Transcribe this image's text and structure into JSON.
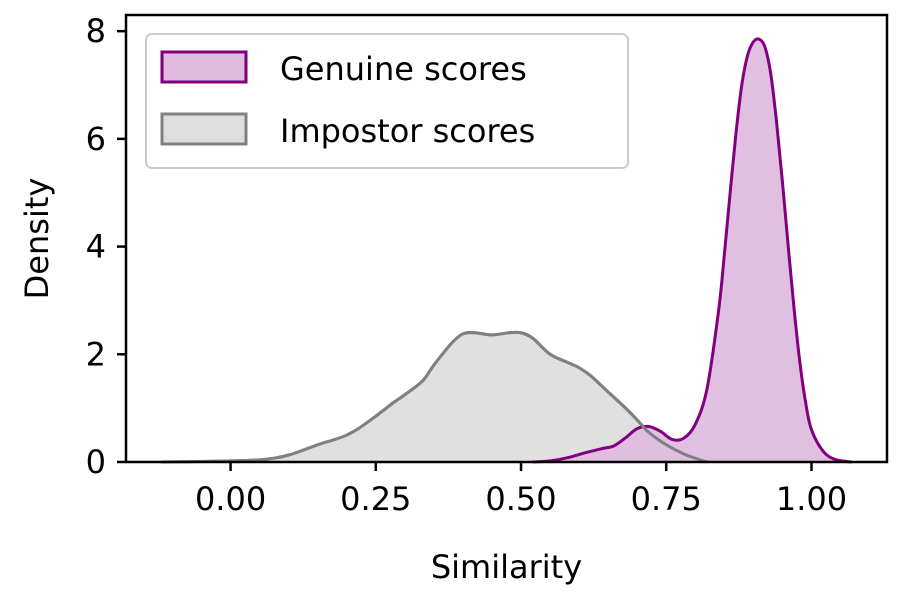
{
  "chart_data": {
    "type": "area",
    "title": "",
    "xlabel": "Similarity",
    "ylabel": "Density",
    "xlim": [
      -0.18,
      1.13
    ],
    "ylim": [
      0,
      8.3
    ],
    "xticks": [
      0.0,
      0.25,
      0.5,
      0.75,
      1.0
    ],
    "xtick_labels": [
      "0.00",
      "0.25",
      "0.50",
      "0.75",
      "1.00"
    ],
    "yticks": [
      0,
      2,
      4,
      6,
      8
    ],
    "ytick_labels": [
      "0",
      "2",
      "4",
      "6",
      "8"
    ],
    "grid": false,
    "legend_position": "top-left",
    "series": [
      {
        "name": "Genuine scores",
        "line_color": "#800080",
        "fill_color": "#dfbcdf",
        "x": [
          0.52,
          0.55,
          0.58,
          0.61,
          0.64,
          0.66,
          0.68,
          0.7,
          0.72,
          0.74,
          0.76,
          0.78,
          0.8,
          0.82,
          0.84,
          0.85,
          0.86,
          0.87,
          0.88,
          0.89,
          0.9,
          0.91,
          0.92,
          0.93,
          0.94,
          0.95,
          0.96,
          0.97,
          0.98,
          0.99,
          1.0,
          1.02,
          1.04,
          1.06,
          1.07
        ],
        "y": [
          0.0,
          0.02,
          0.08,
          0.17,
          0.25,
          0.3,
          0.45,
          0.62,
          0.66,
          0.57,
          0.42,
          0.44,
          0.7,
          1.35,
          2.8,
          3.85,
          5.0,
          6.1,
          7.0,
          7.55,
          7.8,
          7.85,
          7.7,
          7.2,
          6.3,
          5.2,
          4.0,
          2.85,
          1.85,
          1.1,
          0.6,
          0.2,
          0.05,
          0.01,
          0.0
        ]
      },
      {
        "name": "Impostor scores",
        "line_color": "#808080",
        "fill_color": "#dedede",
        "x": [
          -0.12,
          -0.05,
          0.0,
          0.05,
          0.08,
          0.1,
          0.12,
          0.15,
          0.18,
          0.2,
          0.22,
          0.25,
          0.28,
          0.3,
          0.33,
          0.35,
          0.38,
          0.4,
          0.42,
          0.45,
          0.48,
          0.5,
          0.52,
          0.55,
          0.58,
          0.6,
          0.62,
          0.65,
          0.68,
          0.7,
          0.72,
          0.75,
          0.78,
          0.8,
          0.82
        ],
        "y": [
          0.0,
          0.01,
          0.02,
          0.04,
          0.08,
          0.13,
          0.2,
          0.32,
          0.42,
          0.5,
          0.62,
          0.85,
          1.1,
          1.25,
          1.5,
          1.8,
          2.2,
          2.38,
          2.4,
          2.36,
          2.4,
          2.4,
          2.3,
          2.0,
          1.85,
          1.75,
          1.6,
          1.3,
          1.0,
          0.78,
          0.55,
          0.32,
          0.15,
          0.07,
          0.0
        ]
      }
    ]
  }
}
